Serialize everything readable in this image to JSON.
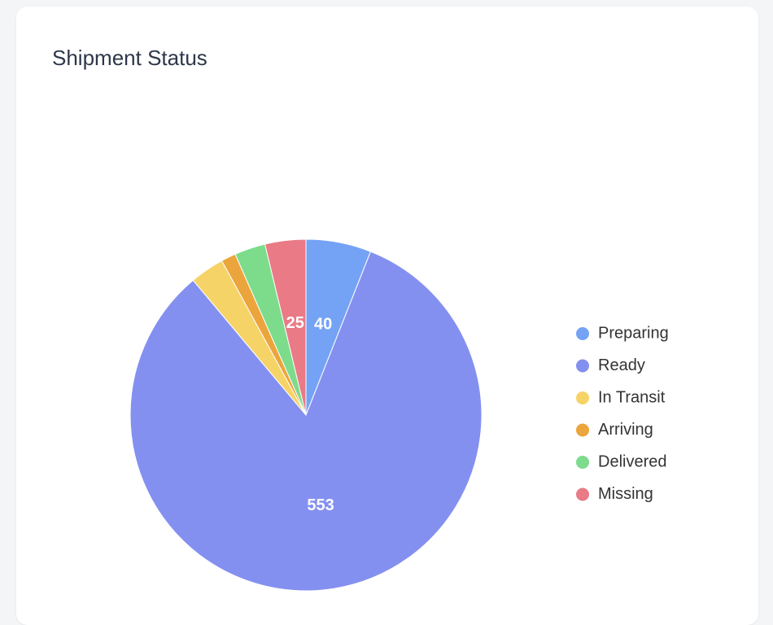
{
  "chart_data": {
    "type": "pie",
    "title": "Shipment Status",
    "categories": [
      "Preparing",
      "Ready",
      "In Transit",
      "Arriving",
      "Delivered",
      "Missing"
    ],
    "values": [
      40,
      553,
      21,
      9,
      19,
      25
    ],
    "colors": [
      "#74a3f5",
      "#8490f0",
      "#f5d366",
      "#eba53c",
      "#7ddc8b",
      "#e97a86"
    ],
    "legend": "right"
  }
}
